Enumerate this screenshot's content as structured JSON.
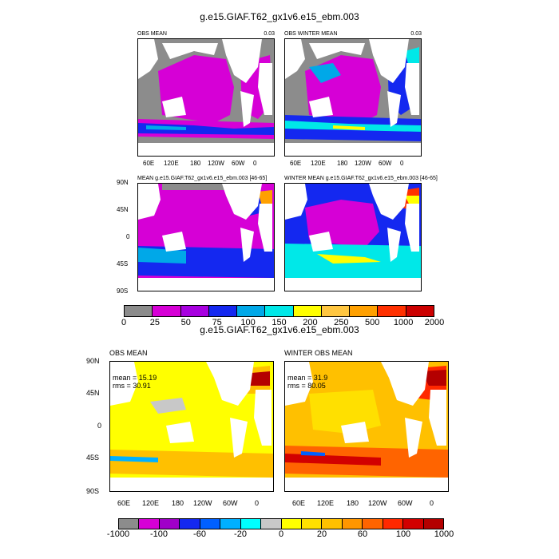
{
  "top": {
    "title": "g.e15.GIAF.T62_gx1v6.e15_ebm.003",
    "panels": {
      "obs_mean": {
        "title": "OBS MEAN",
        "scale": "0.03"
      },
      "obs_winter": {
        "title": "OBS WINTER MEAN",
        "scale": "0.03"
      },
      "mean": {
        "title": "MEAN g.e15.GIAF.T62_gx1v6.e15_ebm.003 [46-65]"
      },
      "winter_mean": {
        "title": "WINTER MEAN g.e15.GIAF.T62_gx1v6.e15_ebm.003 [46-65]"
      }
    },
    "lon_ticks": [
      "60E",
      "120E",
      "180",
      "120W",
      "60W",
      "0"
    ],
    "lat_ticks": [
      "90N",
      "45N",
      "0",
      "45S",
      "90S"
    ],
    "colorbar": {
      "colors": [
        "#8c8c8c",
        "#d600d6",
        "#a800e0",
        "#1428f0",
        "#00a8e8",
        "#00e8e8",
        "#ffff00",
        "#ffc640",
        "#ffa000",
        "#ff3000",
        "#cc0000"
      ],
      "labels": [
        "0",
        "25",
        "50",
        "75",
        "100",
        "150",
        "200",
        "250",
        "500",
        "1000",
        "2000"
      ]
    }
  },
  "bottom": {
    "title": "g.e15.GIAF.T62_gx1v6.e15_ebm.003",
    "panels": {
      "obs_mean": {
        "title": "OBS MEAN",
        "mean_label": "mean = 15.19",
        "rms_label": "rms = 30.91"
      },
      "winter_obs": {
        "title": "WINTER OBS MEAN",
        "mean_label": "mean = 31.9",
        "rms_label": "rms = 80.05"
      }
    },
    "lon_ticks": [
      "60E",
      "120E",
      "180",
      "120W",
      "60W",
      "0"
    ],
    "lat_ticks": [
      "90N",
      "45N",
      "0",
      "45S",
      "90S"
    ],
    "colorbar": {
      "colors": [
        "#8c8c8c",
        "#d600d6",
        "#a000c8",
        "#1428f0",
        "#0060ff",
        "#00b0ff",
        "#00ffff",
        "#c8c8c8",
        "#ffff00",
        "#ffe000",
        "#ffc000",
        "#ff9600",
        "#ff6400",
        "#ff2800",
        "#d20000",
        "#b40000"
      ],
      "labels": [
        "-1000",
        "-100",
        "-60",
        "-20",
        "0",
        "20",
        "60",
        "100",
        "1000"
      ]
    }
  },
  "chart_data": [
    {
      "type": "heatmap",
      "title": "OBS MEAN",
      "scale": "0.03",
      "xticks": [
        "60E",
        "120E",
        "180",
        "120W",
        "60W",
        "0"
      ],
      "color_levels": [
        0,
        25,
        50,
        75,
        100,
        150,
        200,
        250,
        500,
        1000,
        2000
      ]
    },
    {
      "type": "heatmap",
      "title": "OBS WINTER MEAN",
      "scale": "0.03",
      "xticks": [
        "60E",
        "120E",
        "180",
        "120W",
        "60W",
        "0"
      ],
      "color_levels": [
        0,
        25,
        50,
        75,
        100,
        150,
        200,
        250,
        500,
        1000,
        2000
      ]
    },
    {
      "type": "heatmap",
      "title": "MEAN g.e15.GIAF.T62_gx1v6.e15_ebm.003 [46-65]",
      "yticks": [
        "90N",
        "45N",
        "0",
        "45S",
        "90S"
      ],
      "color_levels": [
        0,
        25,
        50,
        75,
        100,
        150,
        200,
        250,
        500,
        1000,
        2000
      ]
    },
    {
      "type": "heatmap",
      "title": "WINTER MEAN g.e15.GIAF.T62_gx1v6.e15_ebm.003 [46-65]",
      "color_levels": [
        0,
        25,
        50,
        75,
        100,
        150,
        200,
        250,
        500,
        1000,
        2000
      ]
    },
    {
      "type": "heatmap",
      "title": "OBS MEAN",
      "mean": 15.19,
      "rms": 30.91,
      "xticks": [
        "60E",
        "120E",
        "180",
        "120W",
        "60W",
        "0"
      ],
      "yticks": [
        "90N",
        "45N",
        "0",
        "45S",
        "90S"
      ],
      "color_levels": [
        -1000,
        -100,
        -60,
        -20,
        0,
        20,
        60,
        100,
        1000
      ]
    },
    {
      "type": "heatmap",
      "title": "WINTER OBS MEAN",
      "mean": 31.9,
      "rms": 80.05,
      "xticks": [
        "60E",
        "120E",
        "180",
        "120W",
        "60W",
        "0"
      ],
      "color_levels": [
        -1000,
        -100,
        -60,
        -20,
        0,
        20,
        60,
        100,
        1000
      ]
    }
  ]
}
